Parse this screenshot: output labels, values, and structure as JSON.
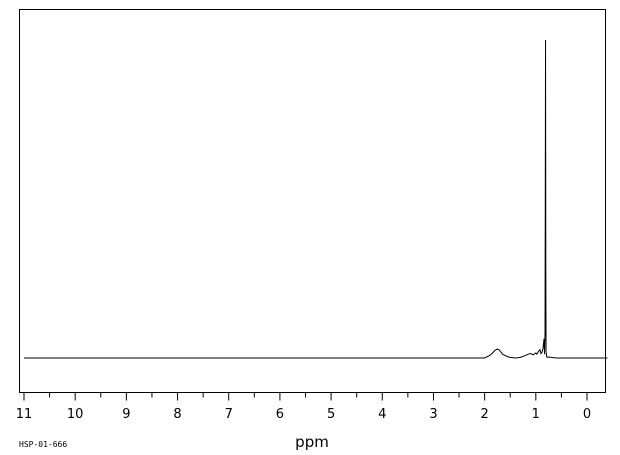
{
  "chart_data": {
    "type": "line",
    "xlabel": "ppm",
    "sample_code": "HSP-01-666",
    "x_direction": "reversed",
    "xlim": [
      11.0,
      -0.4
    ],
    "ylim": [
      -0.08,
      1.0
    ],
    "grid": false,
    "ticks": [
      "11",
      "10",
      "9",
      "8",
      "7",
      "6",
      "5",
      "4",
      "3",
      "2",
      "1",
      "0"
    ],
    "tick_values": [
      11,
      10,
      9,
      8,
      7,
      6,
      5,
      4,
      3,
      2,
      1,
      0
    ],
    "series": [
      {
        "x": [
          11.0,
          2.0,
          1.9,
          1.85,
          1.8,
          1.75,
          1.72,
          1.68,
          1.65,
          1.6,
          1.55,
          1.5,
          1.4,
          1.3,
          1.2,
          1.15,
          1.1,
          1.05,
          1.0,
          0.98,
          0.95,
          0.92,
          0.9,
          0.88,
          0.86,
          0.84,
          0.83,
          0.82,
          0.815,
          0.81,
          0.805,
          0.8,
          0.79,
          0.78,
          0.75,
          0.7,
          0.6,
          -0.4
        ],
        "y": [
          0.0,
          0.0,
          0.008,
          0.015,
          0.024,
          0.028,
          0.026,
          0.018,
          0.012,
          0.008,
          0.004,
          0.002,
          0.0,
          0.002,
          0.008,
          0.012,
          0.014,
          0.01,
          0.016,
          0.012,
          0.02,
          0.026,
          0.014,
          0.018,
          0.03,
          0.06,
          0.012,
          0.08,
          0.5,
          1.0,
          0.3,
          0.02,
          0.006,
          0.002,
          0.003,
          0.002,
          0.0,
          0.0
        ]
      }
    ]
  }
}
